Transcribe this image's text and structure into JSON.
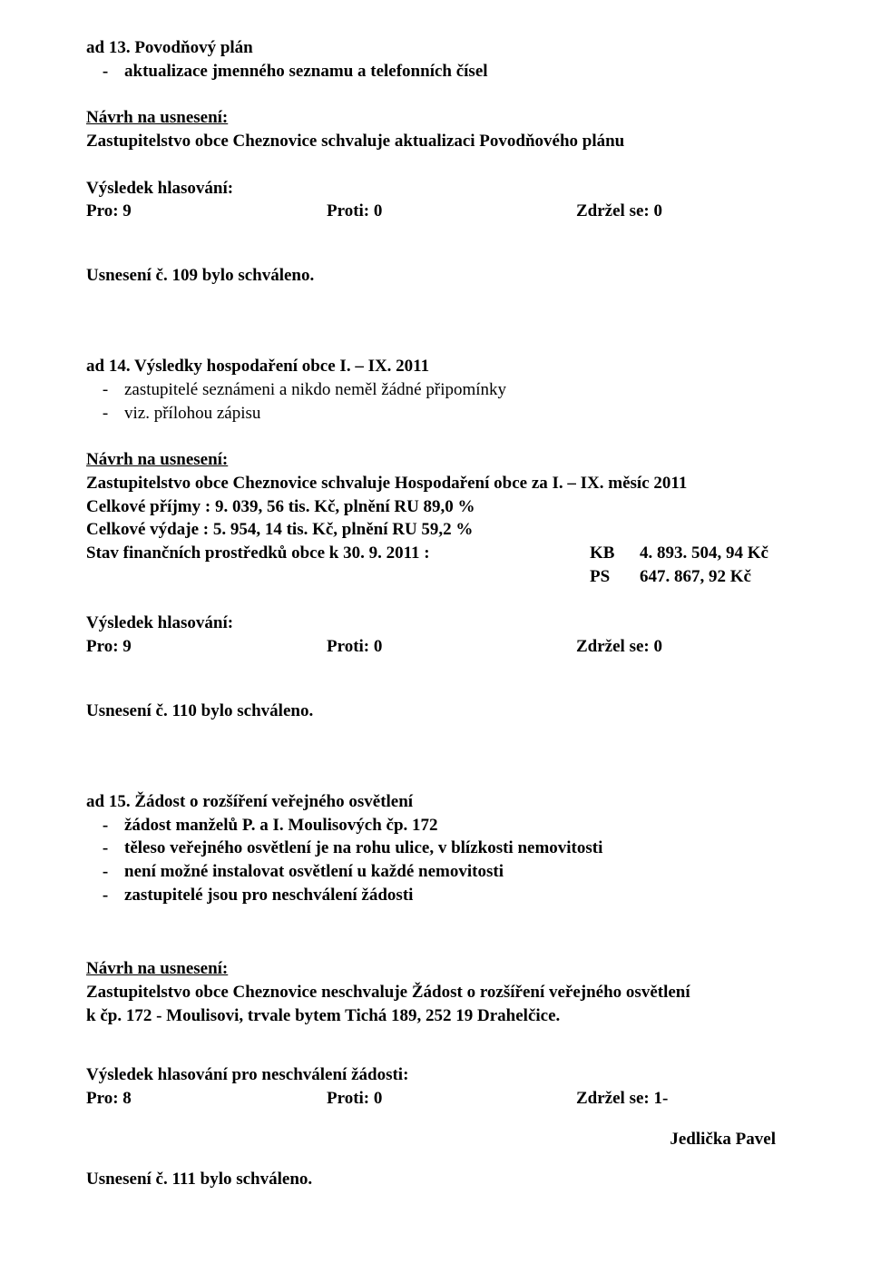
{
  "ad13": {
    "heading_prefix": "ad 13.",
    "heading_rest": " Povodňový plán",
    "bullet": "aktualizace jmenného seznamu a telefonních čísel",
    "nav": "Návrh na usnesení:",
    "resolution": "Zastupitelstvo obce Cheznovice schvaluje aktualizaci Povodňového plánu",
    "vysledek": "Výsledek hlasování:",
    "pro": "Pro:    9",
    "proti": "Proti:  0",
    "zdr": "Zdržel se: 0",
    "usneseni": "Usnesení č. 109 bylo schváleno."
  },
  "ad14": {
    "heading": "ad 14. Výsledky hospodaření obce I. – IX. 2011",
    "b1": "zastupitelé seznámeni a nikdo neměl žádné připomínky",
    "b2": "viz. přílohou zápisu",
    "nav": "Návrh na usnesení:",
    "l1": "Zastupitelstvo obce Cheznovice schvaluje Hospodaření obce za I. – IX. měsíc 2011",
    "l2": "Celkové příjmy :         9. 039, 56 tis. Kč, plnění RU  89,0 %",
    "l3": "Celkové výdaje :         5. 954, 14 tis. Kč, plnění RU  59,2 %",
    "stav_label": "Stav finančních prostředků obce k 30. 9. 2011 :   ",
    "kb": "KB",
    "kb_val": "4. 893. 504, 94 Kč",
    "ps": "PS",
    "ps_val": "   647. 867, 92 Kč",
    "vysledek": "Výsledek hlasování:",
    "pro": "Pro:    9",
    "proti": "Proti:  0",
    "zdr": "Zdržel se: 0",
    "usneseni": "Usnesení č. 110 bylo schváleno."
  },
  "ad15": {
    "heading": "ad 15. Žádost o rozšíření veřejného osvětlení",
    "b1": "žádost manželů P. a I. Moulisových čp. 172",
    "b2": "těleso veřejného osvětlení je na rohu ulice, v blízkosti nemovitosti",
    "b3": "není možné instalovat osvětlení u každé nemovitosti",
    "b4": "zastupitelé jsou pro neschválení žádosti",
    "nav": "Návrh na usnesení:",
    "res1": "Zastupitelstvo obce Cheznovice neschvaluje Žádost o rozšíření veřejného osvětlení",
    "res2": "k čp. 172  - Moulisovi, trvale bytem Tichá 189, 252 19 Drahelčice.",
    "vysledek": "Výsledek hlasování pro neschválení žádosti:",
    "pro": "Pro:    8",
    "proti": "Proti:  0",
    "zdr": "Zdržel se: 1-",
    "jedlicka": "Jedlička Pavel",
    "usneseni": "Usnesení č. 111 bylo schváleno."
  }
}
